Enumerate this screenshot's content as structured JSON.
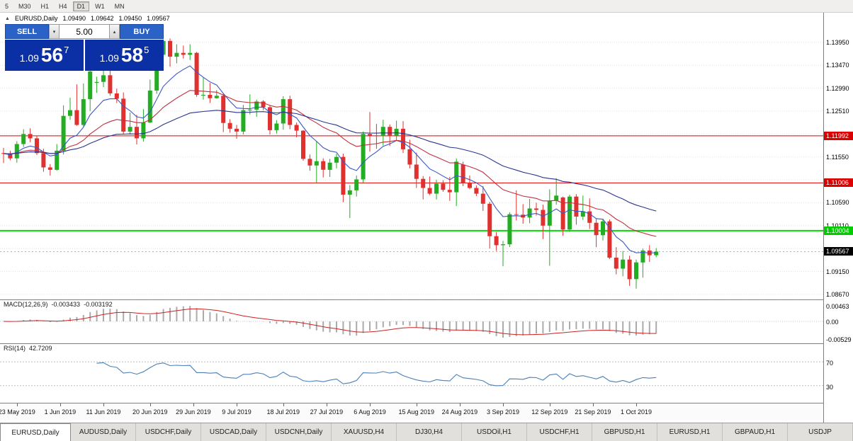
{
  "toolbar": {
    "timeframes": [
      {
        "label": "5",
        "active": false
      },
      {
        "label": "M30",
        "active": false
      },
      {
        "label": "H1",
        "active": false
      },
      {
        "label": "H4",
        "active": false
      },
      {
        "label": "D1",
        "active": true
      },
      {
        "label": "W1",
        "active": false
      },
      {
        "label": "MN",
        "active": false
      }
    ]
  },
  "chart_header": {
    "collapse_icon": "▲",
    "symbol_timeframe": "EURUSD,Daily",
    "open": "1.09490",
    "high": "1.09642",
    "low": "1.09450",
    "close": "1.09567"
  },
  "one_click": {
    "sell_label": "SELL",
    "buy_label": "BUY",
    "volume": "5.00",
    "sell_price": {
      "prefix": "1.09",
      "pips": "56",
      "pipette": "7"
    },
    "buy_price": {
      "prefix": "1.09",
      "pips": "58",
      "pipette": "5"
    }
  },
  "price_axis": {
    "grid_levels": [
      1.1395,
      1.1347,
      1.1299,
      1.1251,
      1.1203,
      1.1155,
      1.1107,
      1.1059,
      1.1011,
      1.0963,
      1.0915,
      1.0867
    ],
    "ticks": [
      {
        "text": "1.13950",
        "value": 1.1395
      },
      {
        "text": "1.13470",
        "value": 1.1347
      },
      {
        "text": "1.12990",
        "value": 1.1299
      },
      {
        "text": "1.12510",
        "value": 1.1251
      },
      {
        "text": "1.11550",
        "value": 1.1155
      },
      {
        "text": "1.10590",
        "value": 1.1059
      },
      {
        "text": "1.10110",
        "value": 1.1011
      },
      {
        "text": "1.09150",
        "value": 1.0915
      },
      {
        "text": "1.08670",
        "value": 1.0867
      }
    ],
    "level_labels": [
      {
        "text": "1.11992",
        "value": 1.11992,
        "bg": "#dd0000"
      },
      {
        "text": "1.11006",
        "value": 1.11006,
        "bg": "#dd0000"
      },
      {
        "text": "1.10004",
        "value": 1.10004,
        "bg": "#00cc00"
      },
      {
        "text": "1.09567",
        "value": 1.09567,
        "bg": "#000000"
      }
    ],
    "macd_ticks": [
      {
        "text": "0.00463",
        "value": 0.00463
      },
      {
        "text": "0.00",
        "value": 0
      },
      {
        "text": "-0.00529",
        "value": -0.00529
      }
    ],
    "rsi_ticks": [
      {
        "text": "70",
        "value": 70
      },
      {
        "text": "30",
        "value": 30
      }
    ]
  },
  "chart_data": {
    "type": "candlestick",
    "title": "EURUSD,Daily",
    "ohlc_display": {
      "open": "1.09490",
      "high": "1.09642",
      "low": "1.09450",
      "close": "1.09567"
    },
    "y_range": {
      "min": 1.0855,
      "max": 1.1457
    },
    "colors": {
      "up": "#22ad22",
      "down": "#e03131",
      "grid": "#e2e2e2"
    },
    "hlines": [
      {
        "value": 1.11992,
        "color": "#dd0000",
        "width": 1
      },
      {
        "value": 1.11006,
        "color": "#dd0000",
        "width": 1
      },
      {
        "value": 1.10004,
        "color": "#00dd00",
        "width": 2
      }
    ],
    "current_price": {
      "value": 1.09567,
      "line_color": "#999999"
    },
    "moving_averages": [
      {
        "type": "ema",
        "period": 8,
        "color": "#3a57c9"
      },
      {
        "type": "ema",
        "period": 21,
        "color": "#c2303e"
      },
      {
        "type": "ema",
        "period": 45,
        "color": "#2a3590"
      }
    ],
    "x_labels": [
      {
        "text": "23 May 2019",
        "i": 2
      },
      {
        "text": "1 Jun 2019",
        "i": 8.5
      },
      {
        "text": "11 Jun 2019",
        "i": 15
      },
      {
        "text": "20 Jun 2019",
        "i": 22
      },
      {
        "text": "29 Jun 2019",
        "i": 28.5
      },
      {
        "text": "9 Jul 2019",
        "i": 35
      },
      {
        "text": "18 Jul 2019",
        "i": 42
      },
      {
        "text": "27 Jul 2019",
        "i": 48.5
      },
      {
        "text": "6 Aug 2019",
        "i": 55
      },
      {
        "text": "15 Aug 2019",
        "i": 62
      },
      {
        "text": "24 Aug 2019",
        "i": 68.5
      },
      {
        "text": "3 Sep 2019",
        "i": 75
      },
      {
        "text": "12 Sep 2019",
        "i": 82
      },
      {
        "text": "21 Sep 2019",
        "i": 88.5
      },
      {
        "text": "1 Oct 2019",
        "i": 95
      }
    ],
    "candles": [
      [
        1.1163,
        1.1174,
        1.1142,
        1.1162
      ],
      [
        1.1162,
        1.1168,
        1.1148,
        1.1152
      ],
      [
        1.1152,
        1.1188,
        1.1143,
        1.1182
      ],
      [
        1.1182,
        1.1213,
        1.1176,
        1.1203
      ],
      [
        1.1203,
        1.1215,
        1.1186,
        1.1194
      ],
      [
        1.1194,
        1.1199,
        1.1159,
        1.1163
      ],
      [
        1.1163,
        1.1172,
        1.1124,
        1.1133
      ],
      [
        1.1133,
        1.114,
        1.1116,
        1.1128
      ],
      [
        1.1128,
        1.1182,
        1.1126,
        1.1168
      ],
      [
        1.1168,
        1.1263,
        1.116,
        1.1241
      ],
      [
        1.1241,
        1.1279,
        1.1233,
        1.1253
      ],
      [
        1.1253,
        1.1307,
        1.122,
        1.1222
      ],
      [
        1.1222,
        1.1309,
        1.1219,
        1.1276
      ],
      [
        1.1276,
        1.1348,
        1.1251,
        1.1334
      ],
      [
        1.131,
        1.1323,
        1.1289,
        1.1312
      ],
      [
        1.1312,
        1.1338,
        1.1301,
        1.1326
      ],
      [
        1.1326,
        1.1344,
        1.1283,
        1.1288
      ],
      [
        1.1288,
        1.1298,
        1.1268,
        1.1277
      ],
      [
        1.1277,
        1.129,
        1.1203,
        1.1208
      ],
      [
        1.1208,
        1.1248,
        1.1202,
        1.1218
      ],
      [
        1.1218,
        1.1243,
        1.1181,
        1.1194
      ],
      [
        1.1194,
        1.1255,
        1.1187,
        1.1227
      ],
      [
        1.1227,
        1.1317,
        1.1226,
        1.1294
      ],
      [
        1.1294,
        1.1378,
        1.1287,
        1.1369
      ],
      [
        1.1369,
        1.1401,
        1.1365,
        1.1398
      ],
      [
        1.1398,
        1.1403,
        1.1344,
        1.1365
      ],
      [
        1.1365,
        1.1391,
        1.1351,
        1.1373
      ],
      [
        1.1373,
        1.1388,
        1.1361,
        1.1369
      ],
      [
        1.1369,
        1.1391,
        1.1358,
        1.1373
      ],
      [
        1.1373,
        1.1375,
        1.1281,
        1.1285
      ],
      [
        1.1285,
        1.1322,
        1.1275,
        1.1285
      ],
      [
        1.1285,
        1.131,
        1.1268,
        1.1278
      ],
      [
        1.1278,
        1.1295,
        1.1277,
        1.1283
      ],
      [
        1.1283,
        1.1288,
        1.1207,
        1.1226
      ],
      [
        1.1226,
        1.1234,
        1.1206,
        1.1214
      ],
      [
        1.1214,
        1.1222,
        1.1193,
        1.1208
      ],
      [
        1.1208,
        1.1264,
        1.1202,
        1.1253
      ],
      [
        1.1253,
        1.1286,
        1.1244,
        1.1254
      ],
      [
        1.1254,
        1.1275,
        1.1239,
        1.1271
      ],
      [
        1.1271,
        1.1274,
        1.1253,
        1.1259
      ],
      [
        1.1259,
        1.1263,
        1.1202,
        1.1211
      ],
      [
        1.1211,
        1.1232,
        1.1204,
        1.1225
      ],
      [
        1.1225,
        1.1282,
        1.1212,
        1.1276
      ],
      [
        1.1276,
        1.1283,
        1.1213,
        1.1222
      ],
      [
        1.1222,
        1.1227,
        1.1196,
        1.121
      ],
      [
        1.121,
        1.1211,
        1.1147,
        1.1151
      ],
      [
        1.1151,
        1.116,
        1.1126,
        1.1137
      ],
      [
        1.1137,
        1.1187,
        1.1101,
        1.1146
      ],
      [
        1.1146,
        1.1152,
        1.1112,
        1.1128
      ],
      [
        1.1128,
        1.1151,
        1.1113,
        1.1143
      ],
      [
        1.1143,
        1.1162,
        1.1131,
        1.1155
      ],
      [
        1.1155,
        1.1162,
        1.106,
        1.1076
      ],
      [
        1.1076,
        1.1096,
        1.1027,
        1.1085
      ],
      [
        1.1085,
        1.1116,
        1.1072,
        1.1108
      ],
      [
        1.1108,
        1.1208,
        1.1101,
        1.1203
      ],
      [
        1.1203,
        1.1249,
        1.1166,
        1.12
      ],
      [
        1.12,
        1.1224,
        1.1172,
        1.1199
      ],
      [
        1.1199,
        1.1233,
        1.1179,
        1.1218
      ],
      [
        1.1218,
        1.1223,
        1.1178,
        1.12
      ],
      [
        1.12,
        1.1231,
        1.119,
        1.1214
      ],
      [
        1.1214,
        1.123,
        1.1163,
        1.1171
      ],
      [
        1.1171,
        1.1191,
        1.1131,
        1.1139
      ],
      [
        1.1139,
        1.1164,
        1.109,
        1.1109
      ],
      [
        1.1109,
        1.1115,
        1.1066,
        1.109
      ],
      [
        1.109,
        1.1114,
        1.1075,
        1.1078
      ],
      [
        1.1078,
        1.1107,
        1.1066,
        1.1099
      ],
      [
        1.1099,
        1.1106,
        1.1082,
        1.1086
      ],
      [
        1.1086,
        1.1113,
        1.1063,
        1.1081
      ],
      [
        1.1081,
        1.1152,
        1.1052,
        1.1145
      ],
      [
        1.1139,
        1.1145,
        1.1094,
        1.1101
      ],
      [
        1.1101,
        1.1116,
        1.1087,
        1.109
      ],
      [
        1.109,
        1.1095,
        1.1073,
        1.1078
      ],
      [
        1.1078,
        1.1094,
        1.1042,
        1.1057
      ],
      [
        1.1057,
        1.1061,
        1.0963,
        1.0989
      ],
      [
        1.0989,
        1.0998,
        1.0958,
        1.097
      ],
      [
        1.097,
        1.0979,
        1.0926,
        1.0972
      ],
      [
        1.0972,
        1.1039,
        1.0966,
        1.1035
      ],
      [
        1.1035,
        1.1085,
        1.1022,
        1.1034
      ],
      [
        1.1034,
        1.1056,
        1.1015,
        1.1028
      ],
      [
        1.1028,
        1.1067,
        1.1016,
        1.1047
      ],
      [
        1.1047,
        1.1059,
        1.1032,
        1.1044
      ],
      [
        1.1044,
        1.1055,
        1.0983,
        1.1011
      ],
      [
        1.1011,
        1.1087,
        1.0927,
        1.1063
      ],
      [
        1.1063,
        1.111,
        1.1055,
        1.1074
      ],
      [
        1.107,
        1.1072,
        1.099,
        1.1003
      ],
      [
        1.1003,
        1.1076,
        1.0998,
        1.1072
      ],
      [
        1.1072,
        1.1077,
        1.1013,
        1.103
      ],
      [
        1.103,
        1.1074,
        1.1023,
        1.1041
      ],
      [
        1.1041,
        1.1068,
        1.1004,
        1.1017
      ],
      [
        1.1017,
        1.1025,
        1.0966,
        1.0991
      ],
      [
        1.0991,
        1.1024,
        1.098,
        1.102
      ],
      [
        1.102,
        1.1024,
        1.0941,
        1.0944
      ],
      [
        1.0944,
        1.0966,
        1.0909,
        1.0921
      ],
      [
        1.0921,
        1.0958,
        1.0905,
        1.094
      ],
      [
        1.094,
        1.0948,
        1.0885,
        1.0899
      ],
      [
        1.0899,
        1.094,
        1.0879,
        1.0934
      ],
      [
        1.0934,
        1.0963,
        1.0902,
        1.0959
      ],
      [
        1.0959,
        1.097,
        1.0935,
        1.0949
      ],
      [
        1.0949,
        1.09642,
        1.0945,
        1.09567
      ]
    ],
    "indicators": {
      "macd": {
        "label": "MACD(12,26,9)",
        "value_main": "-0.003433",
        "value_signal": "-0.003192",
        "range": [
          -0.0067,
          0.0063
        ],
        "histogram_color": "#ababab",
        "signal_color": "#cc2222"
      },
      "rsi": {
        "label": "RSI(14)",
        "value": "42.7209",
        "levels": [
          70,
          30
        ],
        "range": [
          0,
          100
        ],
        "line_color": "#4a7fb5"
      }
    }
  },
  "bottom_tabs": [
    {
      "label": "EURUSD,Daily",
      "active": true
    },
    {
      "label": "AUDUSD,Daily",
      "active": false
    },
    {
      "label": "USDCHF,Daily",
      "active": false
    },
    {
      "label": "USDCAD,Daily",
      "active": false
    },
    {
      "label": "USDCNH,Daily",
      "active": false
    },
    {
      "label": "XAUUSD,H4",
      "active": false
    },
    {
      "label": "DJ30,H4",
      "active": false
    },
    {
      "label": "USDOil,H1",
      "active": false
    },
    {
      "label": "USDCHF,H1",
      "active": false
    },
    {
      "label": "GBPUSD,H1",
      "active": false
    },
    {
      "label": "EURUSD,H1",
      "active": false
    },
    {
      "label": "GBPAUD,H1",
      "active": false
    },
    {
      "label": "USDJP",
      "active": false
    }
  ]
}
